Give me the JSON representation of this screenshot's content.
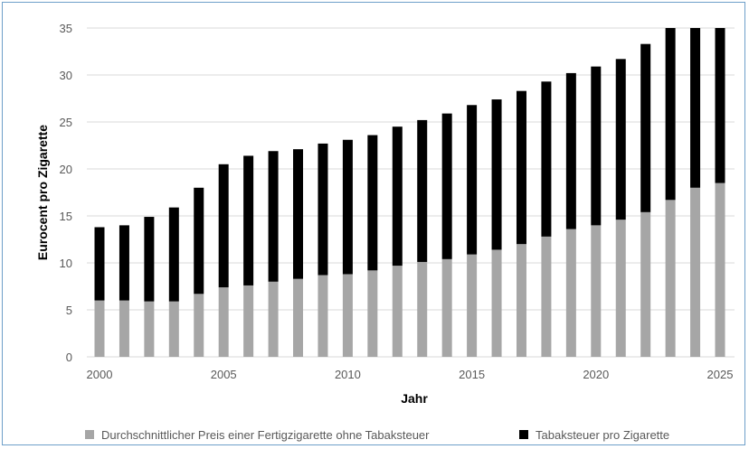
{
  "chart_data": {
    "type": "bar",
    "stacked": true,
    "xlabel": "Jahr",
    "ylabel": "Eurocent pro Zigarette",
    "ylim": [
      0,
      35
    ],
    "yticks": [
      0,
      5,
      10,
      15,
      20,
      25,
      30,
      35
    ],
    "xticks": [
      2000,
      2005,
      2010,
      2015,
      2020,
      2025
    ],
    "grid": true,
    "legend_position": "bottom",
    "categories": [
      2000,
      2001,
      2002,
      2003,
      2004,
      2005,
      2006,
      2007,
      2008,
      2009,
      2010,
      2011,
      2012,
      2013,
      2014,
      2015,
      2016,
      2017,
      2018,
      2019,
      2020,
      2021,
      2022,
      2023,
      2024,
      2025
    ],
    "series": [
      {
        "name": "Durchschnittlicher Preis einer Fertigzigarette ohne Tabaksteuer",
        "color": "#a6a6a6",
        "values": [
          6.0,
          6.0,
          5.9,
          5.9,
          6.7,
          7.4,
          7.6,
          8.0,
          8.3,
          8.7,
          8.8,
          9.2,
          9.7,
          10.1,
          10.4,
          10.9,
          11.4,
          12.0,
          12.8,
          13.6,
          14.0,
          14.6,
          15.4,
          16.7,
          18.0,
          18.5
        ]
      },
      {
        "name": "Tabaksteuer pro Zigarette",
        "color": "#000000",
        "values": [
          7.8,
          8.0,
          9.0,
          10.0,
          11.3,
          13.1,
          13.8,
          13.9,
          13.8,
          14.0,
          14.3,
          14.4,
          14.8,
          15.1,
          15.5,
          15.9,
          16.0,
          16.3,
          16.5,
          16.6,
          16.9,
          17.1,
          17.9,
          18.3,
          17.0,
          16.5
        ]
      }
    ]
  }
}
